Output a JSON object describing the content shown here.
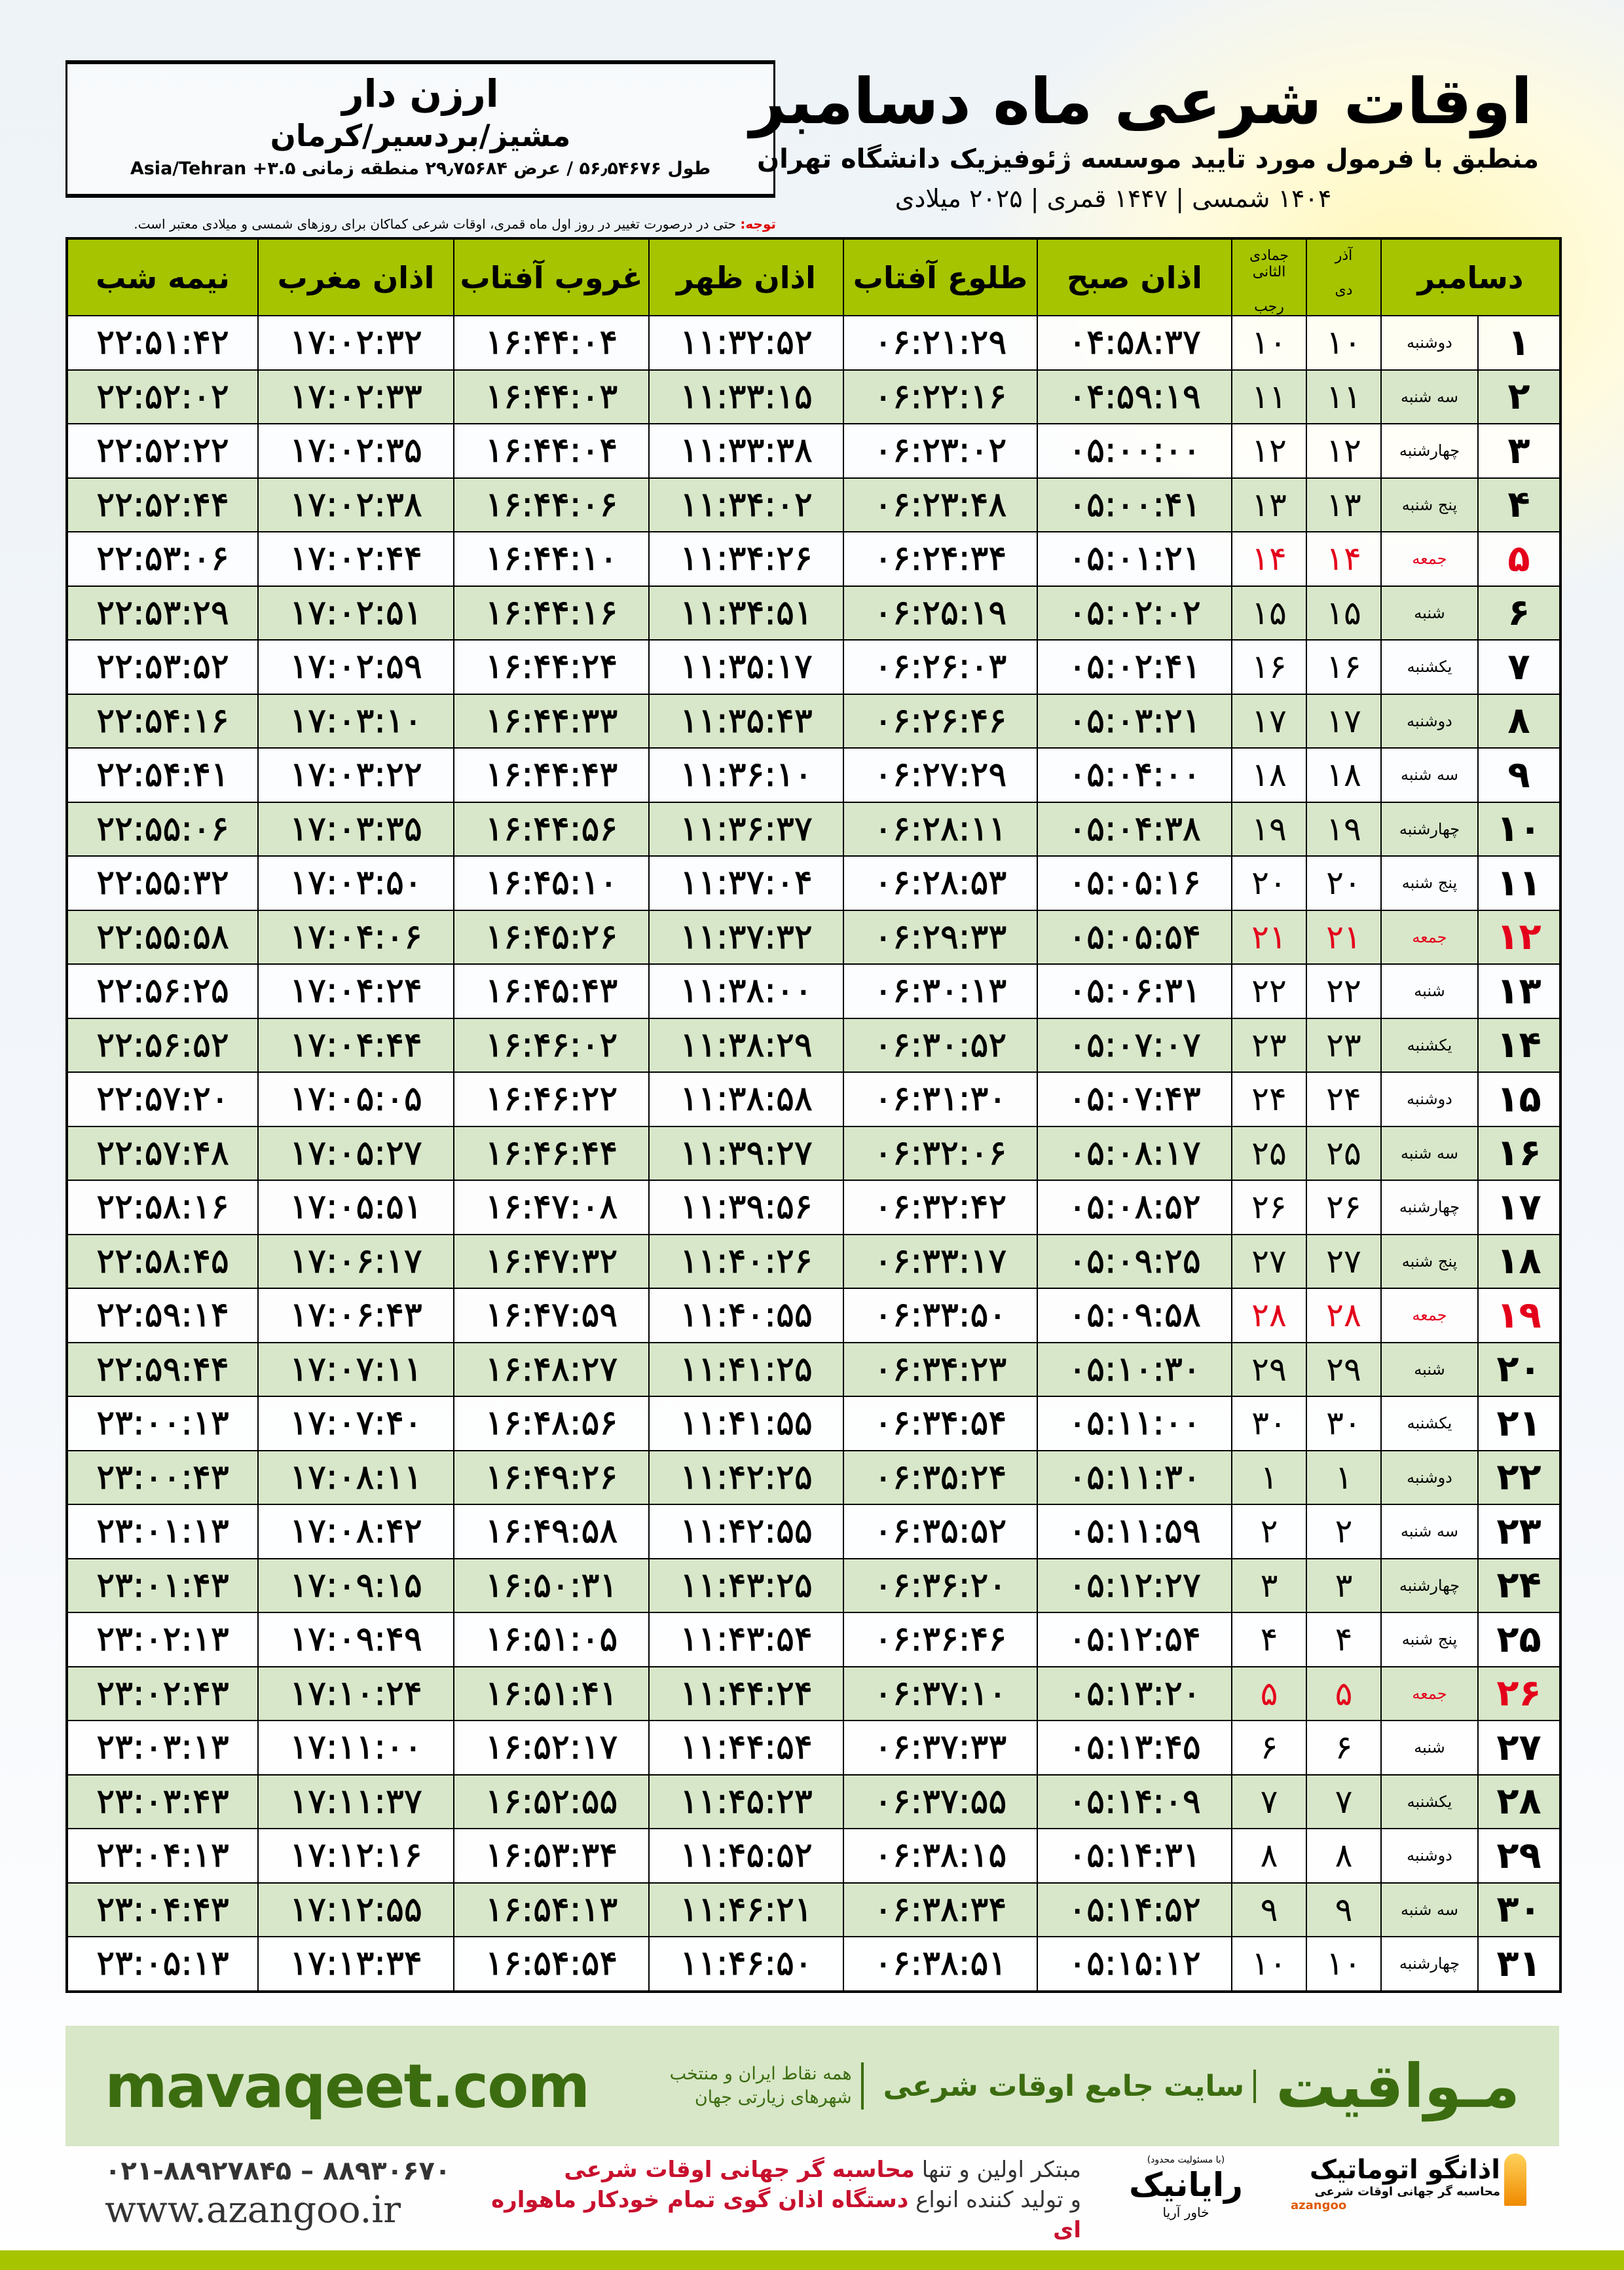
{
  "location": {
    "name": "ارزن دار",
    "region": "مشیز/بردسیر/کرمان",
    "coords": "طول ۵۶٫۵۴۶۷۶ / عرض ۲۹٫۷۵۶۸۴ منطقه زمانی ۳.۵+ Asia/Tehran"
  },
  "header": {
    "title": "اوقات شرعی ماه دسامبر",
    "subtitle": "منطبق با فرمول مورد تایید موسسه ژئوفیزیک دانشگاه تهران",
    "dates": "۱۴۰۴ شمسی | ۱۴۴۷ قمری | ۲۰۲۵ میلادی"
  },
  "note": {
    "label": "توجه:",
    "text": " حتی در درصورت تغییر در روز اول ماه قمری، اوقات شرعی کماکان برای روزهای شمسی و میلادی معتبر است."
  },
  "table": {
    "headers": {
      "month": "دسامبر",
      "solar_top": "آذر",
      "solar_bottom": "دی",
      "lunar_top": "جمادی الثانی",
      "lunar_bottom": "رجب",
      "fajr": "اذان صبح",
      "sunrise": "طلوع آفتاب",
      "dhuhr": "اذان ظهر",
      "sunset": "غروب آفتاب",
      "maghrib": "اذان مغرب",
      "midnight": "نیمه شب"
    },
    "holiday_weekday": "جمعه",
    "colors": {
      "header": "#a6c400",
      "alt_row": "#d8e7c9",
      "holiday": "#e4001b"
    },
    "rows": [
      [
        "۱",
        "دوشنبه",
        "۱۰",
        "۱۰",
        "۰۴:۵۸:۳۷",
        "۰۶:۲۱:۲۹",
        "۱۱:۳۲:۵۲",
        "۱۶:۴۴:۰۴",
        "۱۷:۰۲:۳۲",
        "۲۲:۵۱:۴۲"
      ],
      [
        "۲",
        "سه شنبه",
        "۱۱",
        "۱۱",
        "۰۴:۵۹:۱۹",
        "۰۶:۲۲:۱۶",
        "۱۱:۳۳:۱۵",
        "۱۶:۴۴:۰۳",
        "۱۷:۰۲:۳۳",
        "۲۲:۵۲:۰۲"
      ],
      [
        "۳",
        "چهارشنبه",
        "۱۲",
        "۱۲",
        "۰۵:۰۰:۰۰",
        "۰۶:۲۳:۰۲",
        "۱۱:۳۳:۳۸",
        "۱۶:۴۴:۰۴",
        "۱۷:۰۲:۳۵",
        "۲۲:۵۲:۲۲"
      ],
      [
        "۴",
        "پنج شنبه",
        "۱۳",
        "۱۳",
        "۰۵:۰۰:۴۱",
        "۰۶:۲۳:۴۸",
        "۱۱:۳۴:۰۲",
        "۱۶:۴۴:۰۶",
        "۱۷:۰۲:۳۸",
        "۲۲:۵۲:۴۴"
      ],
      [
        "۵",
        "جمعه",
        "۱۴",
        "۱۴",
        "۰۵:۰۱:۲۱",
        "۰۶:۲۴:۳۴",
        "۱۱:۳۴:۲۶",
        "۱۶:۴۴:۱۰",
        "۱۷:۰۲:۴۴",
        "۲۲:۵۳:۰۶"
      ],
      [
        "۶",
        "شنبه",
        "۱۵",
        "۱۵",
        "۰۵:۰۲:۰۲",
        "۰۶:۲۵:۱۹",
        "۱۱:۳۴:۵۱",
        "۱۶:۴۴:۱۶",
        "۱۷:۰۲:۵۱",
        "۲۲:۵۳:۲۹"
      ],
      [
        "۷",
        "یکشنبه",
        "۱۶",
        "۱۶",
        "۰۵:۰۲:۴۱",
        "۰۶:۲۶:۰۳",
        "۱۱:۳۵:۱۷",
        "۱۶:۴۴:۲۴",
        "۱۷:۰۲:۵۹",
        "۲۲:۵۳:۵۲"
      ],
      [
        "۸",
        "دوشنبه",
        "۱۷",
        "۱۷",
        "۰۵:۰۳:۲۱",
        "۰۶:۲۶:۴۶",
        "۱۱:۳۵:۴۳",
        "۱۶:۴۴:۳۳",
        "۱۷:۰۳:۱۰",
        "۲۲:۵۴:۱۶"
      ],
      [
        "۹",
        "سه شنبه",
        "۱۸",
        "۱۸",
        "۰۵:۰۴:۰۰",
        "۰۶:۲۷:۲۹",
        "۱۱:۳۶:۱۰",
        "۱۶:۴۴:۴۳",
        "۱۷:۰۳:۲۲",
        "۲۲:۵۴:۴۱"
      ],
      [
        "۱۰",
        "چهارشنبه",
        "۱۹",
        "۱۹",
        "۰۵:۰۴:۳۸",
        "۰۶:۲۸:۱۱",
        "۱۱:۳۶:۳۷",
        "۱۶:۴۴:۵۶",
        "۱۷:۰۳:۳۵",
        "۲۲:۵۵:۰۶"
      ],
      [
        "۱۱",
        "پنج شنبه",
        "۲۰",
        "۲۰",
        "۰۵:۰۵:۱۶",
        "۰۶:۲۸:۵۳",
        "۱۱:۳۷:۰۴",
        "۱۶:۴۵:۱۰",
        "۱۷:۰۳:۵۰",
        "۲۲:۵۵:۳۲"
      ],
      [
        "۱۲",
        "جمعه",
        "۲۱",
        "۲۱",
        "۰۵:۰۵:۵۴",
        "۰۶:۲۹:۳۳",
        "۱۱:۳۷:۳۲",
        "۱۶:۴۵:۲۶",
        "۱۷:۰۴:۰۶",
        "۲۲:۵۵:۵۸"
      ],
      [
        "۱۳",
        "شنبه",
        "۲۲",
        "۲۲",
        "۰۵:۰۶:۳۱",
        "۰۶:۳۰:۱۳",
        "۱۱:۳۸:۰۰",
        "۱۶:۴۵:۴۳",
        "۱۷:۰۴:۲۴",
        "۲۲:۵۶:۲۵"
      ],
      [
        "۱۴",
        "یکشنبه",
        "۲۳",
        "۲۳",
        "۰۵:۰۷:۰۷",
        "۰۶:۳۰:۵۲",
        "۱۱:۳۸:۲۹",
        "۱۶:۴۶:۰۲",
        "۱۷:۰۴:۴۴",
        "۲۲:۵۶:۵۲"
      ],
      [
        "۱۵",
        "دوشنبه",
        "۲۴",
        "۲۴",
        "۰۵:۰۷:۴۳",
        "۰۶:۳۱:۳۰",
        "۱۱:۳۸:۵۸",
        "۱۶:۴۶:۲۲",
        "۱۷:۰۵:۰۵",
        "۲۲:۵۷:۲۰"
      ],
      [
        "۱۶",
        "سه شنبه",
        "۲۵",
        "۲۵",
        "۰۵:۰۸:۱۷",
        "۰۶:۳۲:۰۶",
        "۱۱:۳۹:۲۷",
        "۱۶:۴۶:۴۴",
        "۱۷:۰۵:۲۷",
        "۲۲:۵۷:۴۸"
      ],
      [
        "۱۷",
        "چهارشنبه",
        "۲۶",
        "۲۶",
        "۰۵:۰۸:۵۲",
        "۰۶:۳۲:۴۲",
        "۱۱:۳۹:۵۶",
        "۱۶:۴۷:۰۸",
        "۱۷:۰۵:۵۱",
        "۲۲:۵۸:۱۶"
      ],
      [
        "۱۸",
        "پنج شنبه",
        "۲۷",
        "۲۷",
        "۰۵:۰۹:۲۵",
        "۰۶:۳۳:۱۷",
        "۱۱:۴۰:۲۶",
        "۱۶:۴۷:۳۲",
        "۱۷:۰۶:۱۷",
        "۲۲:۵۸:۴۵"
      ],
      [
        "۱۹",
        "جمعه",
        "۲۸",
        "۲۸",
        "۰۵:۰۹:۵۸",
        "۰۶:۳۳:۵۰",
        "۱۱:۴۰:۵۵",
        "۱۶:۴۷:۵۹",
        "۱۷:۰۶:۴۳",
        "۲۲:۵۹:۱۴"
      ],
      [
        "۲۰",
        "شنبه",
        "۲۹",
        "۲۹",
        "۰۵:۱۰:۳۰",
        "۰۶:۳۴:۲۳",
        "۱۱:۴۱:۲۵",
        "۱۶:۴۸:۲۷",
        "۱۷:۰۷:۱۱",
        "۲۲:۵۹:۴۴"
      ],
      [
        "۲۱",
        "یکشنبه",
        "۳۰",
        "۳۰",
        "۰۵:۱۱:۰۰",
        "۰۶:۳۴:۵۴",
        "۱۱:۴۱:۵۵",
        "۱۶:۴۸:۵۶",
        "۱۷:۰۷:۴۰",
        "۲۳:۰۰:۱۳"
      ],
      [
        "۲۲",
        "دوشنبه",
        "۱",
        "۱",
        "۰۵:۱۱:۳۰",
        "۰۶:۳۵:۲۴",
        "۱۱:۴۲:۲۵",
        "۱۶:۴۹:۲۶",
        "۱۷:۰۸:۱۱",
        "۲۳:۰۰:۴۳"
      ],
      [
        "۲۳",
        "سه شنبه",
        "۲",
        "۲",
        "۰۵:۱۱:۵۹",
        "۰۶:۳۵:۵۲",
        "۱۱:۴۲:۵۵",
        "۱۶:۴۹:۵۸",
        "۱۷:۰۸:۴۲",
        "۲۳:۰۱:۱۳"
      ],
      [
        "۲۴",
        "چهارشنبه",
        "۳",
        "۳",
        "۰۵:۱۲:۲۷",
        "۰۶:۳۶:۲۰",
        "۱۱:۴۳:۲۵",
        "۱۶:۵۰:۳۱",
        "۱۷:۰۹:۱۵",
        "۲۳:۰۱:۴۳"
      ],
      [
        "۲۵",
        "پنج شنبه",
        "۴",
        "۴",
        "۰۵:۱۲:۵۴",
        "۰۶:۳۶:۴۶",
        "۱۱:۴۳:۵۴",
        "۱۶:۵۱:۰۵",
        "۱۷:۰۹:۴۹",
        "۲۳:۰۲:۱۳"
      ],
      [
        "۲۶",
        "جمعه",
        "۵",
        "۵",
        "۰۵:۱۳:۲۰",
        "۰۶:۳۷:۱۰",
        "۱۱:۴۴:۲۴",
        "۱۶:۵۱:۴۱",
        "۱۷:۱۰:۲۴",
        "۲۳:۰۲:۴۳"
      ],
      [
        "۲۷",
        "شنبه",
        "۶",
        "۶",
        "۰۵:۱۳:۴۵",
        "۰۶:۳۷:۳۳",
        "۱۱:۴۴:۵۴",
        "۱۶:۵۲:۱۷",
        "۱۷:۱۱:۰۰",
        "۲۳:۰۳:۱۳"
      ],
      [
        "۲۸",
        "یکشنبه",
        "۷",
        "۷",
        "۰۵:۱۴:۰۹",
        "۰۶:۳۷:۵۵",
        "۱۱:۴۵:۲۳",
        "۱۶:۵۲:۵۵",
        "۱۷:۱۱:۳۷",
        "۲۳:۰۳:۴۳"
      ],
      [
        "۲۹",
        "دوشنبه",
        "۸",
        "۸",
        "۰۵:۱۴:۳۱",
        "۰۶:۳۸:۱۵",
        "۱۱:۴۵:۵۲",
        "۱۶:۵۳:۳۴",
        "۱۷:۱۲:۱۶",
        "۲۳:۰۴:۱۳"
      ],
      [
        "۳۰",
        "سه شنبه",
        "۹",
        "۹",
        "۰۵:۱۴:۵۲",
        "۰۶:۳۸:۳۴",
        "۱۱:۴۶:۲۱",
        "۱۶:۵۴:۱۳",
        "۱۷:۱۲:۵۵",
        "۲۳:۰۴:۴۳"
      ],
      [
        "۳۱",
        "چهارشنبه",
        "۱۰",
        "۱۰",
        "۰۵:۱۵:۱۲",
        "۰۶:۳۸:۵۱",
        "۱۱:۴۶:۵۰",
        "۱۶:۵۴:۵۴",
        "۱۷:۱۳:۳۴",
        "۲۳:۰۵:۱۳"
      ]
    ]
  },
  "footer": {
    "mavaqeet_logo": "مـواقیت",
    "mavaqeet_slogan": "سایت جامع اوقات شرعی",
    "mavaqeet_sub": "همه نقاط ایران و منتخب شهرهای زیارتی جهان",
    "mavaqeet_site": "mavaqeet.com",
    "phone": "۰۲۱-۸۸۹۲۷۸۴۵ – ۸۸۹۳۰۶۷۰",
    "website": "www.azangoo.ir",
    "promo_line1_a": "مبتکر اولین و تنها ",
    "promo_line1_b": "محاسبه گر جهانی اوقات شرعی",
    "promo_line2_a": "و تولید کننده انواع ",
    "promo_line2_b": "دستگاه اذان گوی تمام خودکار ماهواره ای",
    "rayanik_small": "(با مسئولیت محدود)",
    "rayanik_name": "رایانیک",
    "rayanik_sub": "خاور آریا",
    "azangoo_name": "اذانگو اتوماتیک",
    "azangoo_sub": "محاسبه گر جهانی اوقات شرعی",
    "azangoo_en": "azangoo"
  }
}
